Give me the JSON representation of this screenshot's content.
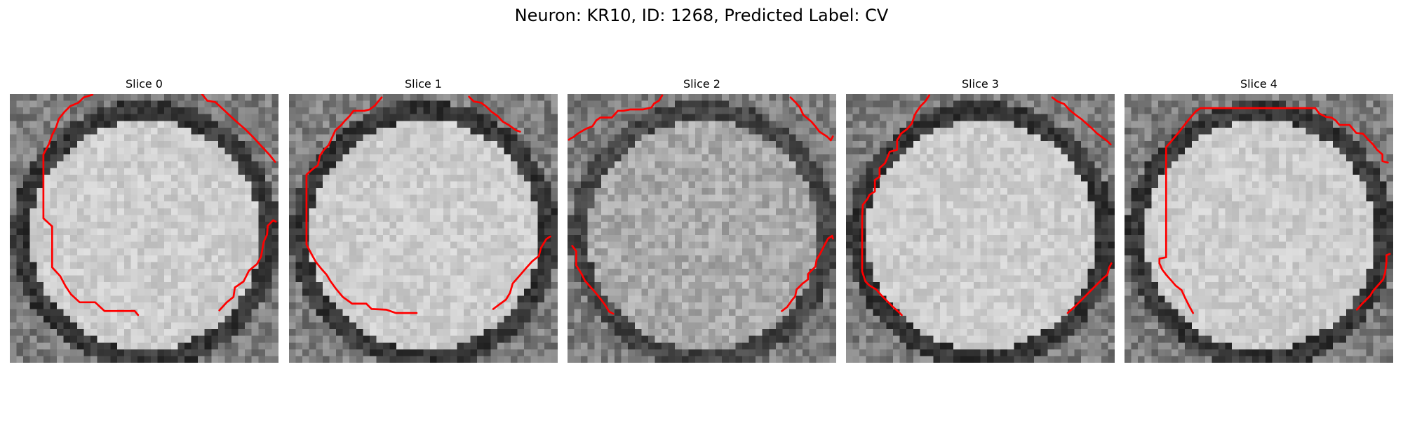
{
  "figure": {
    "title": "Neuron: KR10, ID: 1268, Predicted Label: CV"
  },
  "panels": [
    {
      "title": "Slice 0",
      "seed": 11,
      "contour_color": "#ff0000",
      "contours": [
        [
          [
            12.3,
            0.1
          ],
          [
            11.0,
            0.5
          ],
          [
            10.2,
            1.3
          ],
          [
            9.0,
            1.8
          ],
          [
            8.1,
            2.7
          ],
          [
            7.3,
            3.7
          ],
          [
            6.9,
            4.9
          ],
          [
            6.3,
            6.1
          ],
          [
            5.8,
            7.5
          ],
          [
            5.0,
            9.0
          ],
          [
            5.0,
            12.0
          ],
          [
            5.0,
            15.0
          ],
          [
            5.0,
            18.5
          ],
          [
            6.3,
            19.7
          ],
          [
            6.3,
            23.0
          ],
          [
            6.3,
            25.8
          ],
          [
            7.5,
            27.1
          ],
          [
            8.3,
            28.6
          ],
          [
            9.1,
            29.8
          ],
          [
            10.4,
            31.0
          ],
          [
            12.7,
            31.0
          ],
          [
            14.1,
            32.3
          ],
          [
            16.1,
            32.3
          ],
          [
            18.6,
            32.3
          ],
          [
            19.1,
            32.9
          ]
        ],
        [
          [
            28.6,
            0.0
          ],
          [
            29.4,
            1.0
          ],
          [
            30.6,
            1.2
          ],
          [
            32.0,
            2.5
          ],
          [
            33.5,
            3.9
          ],
          [
            35.0,
            5.2
          ],
          [
            36.3,
            6.5
          ],
          [
            37.5,
            7.8
          ],
          [
            38.7,
            9.1
          ],
          [
            39.5,
            10.1
          ]
        ],
        [
          [
            31.2,
            32.2
          ],
          [
            32.3,
            31.0
          ],
          [
            33.3,
            30.2
          ],
          [
            33.5,
            28.8
          ],
          [
            34.8,
            27.9
          ],
          [
            35.6,
            26.3
          ],
          [
            36.8,
            25.3
          ],
          [
            37.4,
            24.2
          ],
          [
            37.8,
            22.0
          ],
          [
            38.3,
            20.9
          ],
          [
            38.4,
            19.6
          ],
          [
            39.2,
            18.8
          ],
          [
            39.6,
            19.0
          ]
        ]
      ]
    },
    {
      "title": "Slice 1",
      "seed": 23,
      "contour_color": "#ff0000",
      "contours": [
        [
          [
            13.8,
            0.5
          ],
          [
            13.2,
            1.2
          ],
          [
            12.8,
            1.7
          ],
          [
            12.0,
            2.3
          ],
          [
            11.2,
            2.5
          ],
          [
            10.6,
            2.5
          ],
          [
            9.6,
            2.5
          ],
          [
            9.0,
            3.3
          ],
          [
            8.3,
            4.0
          ],
          [
            7.8,
            4.6
          ],
          [
            6.9,
            5.4
          ],
          [
            6.4,
            6.5
          ],
          [
            5.9,
            7.6
          ],
          [
            5.2,
            8.3
          ],
          [
            4.6,
            9.2
          ],
          [
            4.3,
            10.6
          ],
          [
            3.5,
            11.2
          ],
          [
            2.6,
            12.0
          ],
          [
            2.6,
            13.5
          ],
          [
            2.6,
            15.0
          ],
          [
            2.6,
            16.5
          ],
          [
            2.6,
            18.5
          ],
          [
            2.6,
            20.5
          ],
          [
            2.6,
            22.4
          ],
          [
            3.5,
            24.1
          ],
          [
            4.0,
            25.0
          ],
          [
            4.8,
            26.0
          ],
          [
            5.6,
            26.9
          ],
          [
            6.2,
            27.9
          ],
          [
            7.0,
            29.0
          ],
          [
            8.0,
            30.2
          ],
          [
            9.4,
            31.2
          ],
          [
            11.5,
            31.2
          ],
          [
            12.3,
            32.0
          ],
          [
            14.5,
            32.1
          ],
          [
            15.9,
            32.6
          ],
          [
            19.0,
            32.6
          ]
        ],
        [
          [
            26.8,
            0.4
          ],
          [
            27.5,
            1.1
          ],
          [
            28.6,
            1.3
          ],
          [
            29.4,
            1.9
          ],
          [
            30.1,
            2.6
          ],
          [
            31.1,
            3.3
          ],
          [
            31.8,
            4.1
          ],
          [
            32.7,
            4.6
          ],
          [
            33.8,
            5.4
          ],
          [
            34.4,
            5.6
          ]
        ],
        [
          [
            30.4,
            32.0
          ],
          [
            31.2,
            31.4
          ],
          [
            32.3,
            30.6
          ],
          [
            32.9,
            29.6
          ],
          [
            33.3,
            28.2
          ],
          [
            34.1,
            27.3
          ],
          [
            34.7,
            26.6
          ],
          [
            35.3,
            25.9
          ],
          [
            36.2,
            24.9
          ],
          [
            37.2,
            24.1
          ],
          [
            37.5,
            22.9
          ],
          [
            38.3,
            21.6
          ],
          [
            38.9,
            21.2
          ]
        ]
      ]
    },
    {
      "title": "Slice 2",
      "seed": 37,
      "contour_color": "#ff0000",
      "contours": [
        [
          [
            14.1,
            0.2
          ],
          [
            13.6,
            1.0
          ],
          [
            12.9,
            1.4
          ],
          [
            12.5,
            2.0
          ],
          [
            11.2,
            2.3
          ],
          [
            10.1,
            2.3
          ],
          [
            9.3,
            2.3
          ],
          [
            8.3,
            2.5
          ],
          [
            7.5,
            2.5
          ],
          [
            6.6,
            3.5
          ],
          [
            5.8,
            3.5
          ],
          [
            4.9,
            3.5
          ],
          [
            4.3,
            3.9
          ],
          [
            3.7,
            4.8
          ],
          [
            2.7,
            5.2
          ],
          [
            1.5,
            5.9
          ],
          [
            0.9,
            6.4
          ],
          [
            0.5,
            6.6
          ],
          [
            0.2,
            6.8
          ]
        ],
        [
          [
            33.2,
            0.5
          ],
          [
            34.0,
            1.3
          ],
          [
            34.6,
            2.0
          ],
          [
            35.1,
            3.1
          ],
          [
            35.7,
            3.6
          ],
          [
            36.3,
            4.1
          ],
          [
            36.9,
            4.8
          ],
          [
            37.5,
            5.6
          ],
          [
            38.6,
            6.3
          ],
          [
            39.2,
            6.9
          ],
          [
            39.5,
            6.3
          ]
        ],
        [
          [
            0.7,
            22.6
          ],
          [
            1.3,
            23.4
          ],
          [
            1.3,
            24.6
          ],
          [
            1.3,
            25.5
          ],
          [
            2.1,
            26.8
          ],
          [
            2.6,
            27.8
          ],
          [
            3.4,
            28.7
          ],
          [
            4.2,
            29.6
          ],
          [
            5.0,
            30.6
          ],
          [
            5.6,
            31.4
          ],
          [
            6.2,
            32.4
          ],
          [
            6.8,
            32.7
          ]
        ],
        [
          [
            31.9,
            32.3
          ],
          [
            32.7,
            31.7
          ],
          [
            33.4,
            30.7
          ],
          [
            33.9,
            30.1
          ],
          [
            34.1,
            29.1
          ],
          [
            35.0,
            28.2
          ],
          [
            35.8,
            27.6
          ],
          [
            35.8,
            26.8
          ],
          [
            36.9,
            25.7
          ],
          [
            37.1,
            24.6
          ],
          [
            37.6,
            23.8
          ],
          [
            38.2,
            22.6
          ],
          [
            38.8,
            21.5
          ],
          [
            39.4,
            21.1
          ],
          [
            39.5,
            21.5
          ]
        ]
      ]
    },
    {
      "title": "Slice 3",
      "seed": 53,
      "contour_color": "#ff0000",
      "contours": [
        [
          [
            12.4,
            0.2
          ],
          [
            11.8,
            1.1
          ],
          [
            11.1,
            1.8
          ],
          [
            10.4,
            2.8
          ],
          [
            10.2,
            3.2
          ],
          [
            9.8,
            4.4
          ],
          [
            9.1,
            5.2
          ],
          [
            8.2,
            5.9
          ],
          [
            7.6,
            6.9
          ],
          [
            7.6,
            8.3
          ],
          [
            6.5,
            8.6
          ],
          [
            6.1,
            9.6
          ],
          [
            5.8,
            10.3
          ],
          [
            5.0,
            11.0
          ],
          [
            5.0,
            12.3
          ],
          [
            4.3,
            12.8
          ],
          [
            4.3,
            14.5
          ],
          [
            3.5,
            15.0
          ],
          [
            3.2,
            15.6
          ],
          [
            2.5,
            16.5
          ],
          [
            2.4,
            18.4
          ],
          [
            2.4,
            20.0
          ],
          [
            2.4,
            21.6
          ],
          [
            2.4,
            23.4
          ],
          [
            2.4,
            24.9
          ],
          [
            2.4,
            26.4
          ],
          [
            2.9,
            27.9
          ],
          [
            3.5,
            28.5
          ],
          [
            4.5,
            29.1
          ],
          [
            5.3,
            30.0
          ],
          [
            6.1,
            30.8
          ],
          [
            7.0,
            31.7
          ],
          [
            7.9,
            32.5
          ],
          [
            8.3,
            32.9
          ]
        ],
        [
          [
            30.7,
            0.5
          ],
          [
            31.5,
            1.1
          ],
          [
            32.5,
            1.5
          ],
          [
            33.3,
            2.4
          ],
          [
            34.3,
            3.2
          ],
          [
            35.0,
            3.7
          ],
          [
            35.8,
            4.4
          ],
          [
            36.6,
            5.1
          ],
          [
            37.3,
            5.8
          ],
          [
            38.1,
            6.4
          ],
          [
            38.9,
            7.0
          ],
          [
            39.4,
            7.5
          ]
        ],
        [
          [
            33.0,
            32.6
          ],
          [
            34.0,
            31.7
          ],
          [
            34.9,
            30.8
          ],
          [
            35.8,
            29.9
          ],
          [
            36.6,
            29.1
          ],
          [
            37.5,
            28.2
          ],
          [
            38.3,
            27.4
          ],
          [
            38.9,
            26.9
          ],
          [
            39.2,
            25.8
          ],
          [
            39.5,
            25.2
          ]
        ]
      ]
    },
    {
      "title": "Slice 4",
      "seed": 71,
      "contour_color": "#ff0000",
      "contours": [
        [
          [
            10.2,
            32.6
          ],
          [
            9.6,
            31.5
          ],
          [
            9.0,
            30.3
          ],
          [
            8.5,
            29.2
          ],
          [
            7.6,
            28.5
          ],
          [
            7.0,
            27.8
          ],
          [
            6.2,
            26.9
          ],
          [
            5.6,
            26.1
          ],
          [
            5.2,
            25.2
          ],
          [
            5.2,
            24.5
          ],
          [
            6.2,
            24.3
          ],
          [
            6.2,
            22.3
          ],
          [
            6.2,
            20.5
          ],
          [
            6.2,
            18.5
          ],
          [
            6.2,
            16.5
          ],
          [
            6.2,
            14.5
          ],
          [
            6.2,
            12.5
          ],
          [
            6.2,
            10.5
          ],
          [
            6.2,
            9.2
          ],
          [
            6.2,
            7.9
          ],
          [
            6.9,
            7.1
          ],
          [
            7.5,
            6.4
          ],
          [
            8.0,
            5.8
          ],
          [
            8.7,
            4.9
          ],
          [
            9.4,
            4.0
          ],
          [
            10.0,
            3.3
          ],
          [
            10.6,
            2.6
          ],
          [
            11.3,
            2.1
          ],
          [
            12.0,
            2.1
          ],
          [
            14.0,
            2.1
          ],
          [
            16.0,
            2.1
          ],
          [
            18.0,
            2.1
          ],
          [
            20.0,
            2.1
          ],
          [
            22.0,
            2.1
          ],
          [
            24.0,
            2.1
          ],
          [
            26.0,
            2.1
          ],
          [
            28.4,
            2.1
          ],
          [
            29.0,
            2.9
          ],
          [
            30.0,
            3.4
          ],
          [
            30.8,
            3.5
          ],
          [
            31.4,
            3.9
          ],
          [
            32.0,
            4.6
          ],
          [
            33.5,
            4.6
          ],
          [
            34.0,
            5.2
          ],
          [
            34.5,
            5.8
          ],
          [
            35.5,
            5.9
          ],
          [
            36.3,
            6.8
          ],
          [
            37.0,
            7.5
          ],
          [
            37.6,
            8.3
          ],
          [
            38.4,
            9.0
          ],
          [
            38.4,
            10.0
          ],
          [
            39.2,
            10.2
          ]
        ],
        [
          [
            34.6,
            32.1
          ],
          [
            35.3,
            31.3
          ],
          [
            36.0,
            30.6
          ],
          [
            36.6,
            30.0
          ],
          [
            37.0,
            29.3
          ],
          [
            37.8,
            28.4
          ],
          [
            38.5,
            27.6
          ],
          [
            38.8,
            26.6
          ],
          [
            39.0,
            25.0
          ],
          [
            39.0,
            24.0
          ],
          [
            39.5,
            23.8
          ]
        ]
      ]
    }
  ]
}
